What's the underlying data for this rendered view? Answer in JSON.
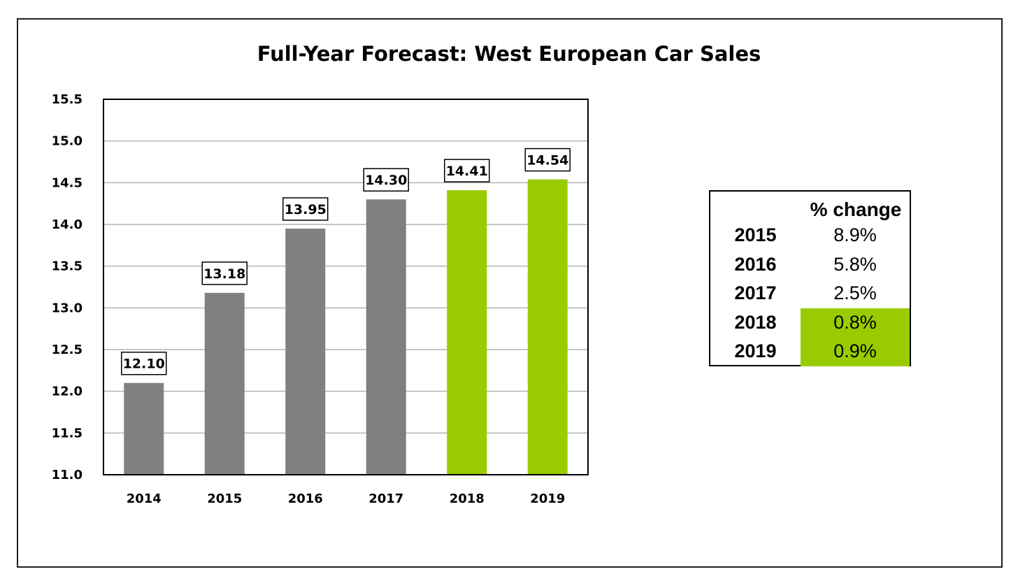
{
  "chart_data": {
    "type": "bar",
    "title": "Full-Year Forecast: West European Car Sales",
    "categories": [
      "2014",
      "2015",
      "2016",
      "2017",
      "2018",
      "2019"
    ],
    "values": [
      12.1,
      13.18,
      13.95,
      14.3,
      14.41,
      14.54
    ],
    "data_labels": [
      "12.10",
      "13.18",
      "13.95",
      "14.30",
      "14.41",
      "14.54"
    ],
    "ylim": [
      11.0,
      15.5
    ],
    "yticks": [
      "11.0",
      "11.5",
      "12.0",
      "12.5",
      "13.0",
      "13.5",
      "14.0",
      "14.5",
      "15.0",
      "15.5"
    ],
    "grid": true,
    "colors": {
      "actual": "#808080",
      "forecast": "#99cc00"
    },
    "bar_colors": [
      "#808080",
      "#808080",
      "#808080",
      "#808080",
      "#99cc00",
      "#99cc00"
    ]
  },
  "change_table": {
    "header": "% change",
    "highlight_color": "#99cc00",
    "rows": [
      {
        "year": "2015",
        "value": "8.9%",
        "highlight": false
      },
      {
        "year": "2016",
        "value": "5.8%",
        "highlight": false
      },
      {
        "year": "2017",
        "value": "2.5%",
        "highlight": false
      },
      {
        "year": "2018",
        "value": "0.8%",
        "highlight": true
      },
      {
        "year": "2019",
        "value": "0.9%",
        "highlight": true
      }
    ]
  }
}
